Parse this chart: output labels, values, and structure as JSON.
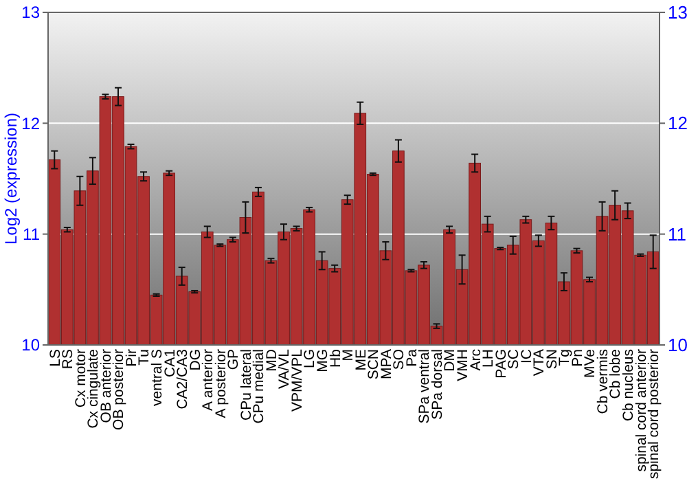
{
  "chart_data": {
    "type": "bar",
    "ylabel": "Log2 (expression)",
    "categories": [
      "LS",
      "RS",
      "Cx motor",
      "Cx cingulate",
      "OB anterior",
      "OB posterior",
      "Pir",
      "Tu",
      "ventral S",
      "CA1",
      "CA2/CA3",
      "DG",
      "A anterior",
      "A posterior",
      "GP",
      "CPu lateral",
      "CPu medial",
      "MD",
      "VA/VL",
      "VPM/VPL",
      "LG",
      "MG",
      "Hb",
      "M",
      "ME",
      "SCN",
      "MPA",
      "SO",
      "Pa",
      "SPa ventral",
      "SPa dorsal",
      "DM",
      "VMH",
      "Arc",
      "LH",
      "PAG",
      "SC",
      "IC",
      "VTA",
      "SN",
      "Tg",
      "Pn",
      "MVe",
      "Cb vermis",
      "Cb lobe",
      "Cb nucleus",
      "spinal cord anterior",
      "spinal cord posterior"
    ],
    "values": [
      11.67,
      11.04,
      11.39,
      11.57,
      12.24,
      12.24,
      11.79,
      11.52,
      10.45,
      11.55,
      10.62,
      10.48,
      11.02,
      10.9,
      10.95,
      11.15,
      11.38,
      10.76,
      11.02,
      11.05,
      11.22,
      10.76,
      10.69,
      11.31,
      12.09,
      11.54,
      10.85,
      11.75,
      10.67,
      10.72,
      10.17,
      11.04,
      10.68,
      11.64,
      11.09,
      10.87,
      10.9,
      11.13,
      10.94,
      11.1,
      10.57,
      10.85,
      10.59,
      11.16,
      11.26,
      11.21,
      10.81,
      10.84
    ],
    "errors": [
      0.08,
      0.02,
      0.13,
      0.12,
      0.02,
      0.08,
      0.02,
      0.04,
      0.01,
      0.02,
      0.08,
      0.01,
      0.05,
      0.01,
      0.02,
      0.14,
      0.04,
      0.02,
      0.07,
      0.02,
      0.02,
      0.08,
      0.03,
      0.04,
      0.1,
      0.01,
      0.08,
      0.1,
      0.01,
      0.03,
      0.02,
      0.03,
      0.13,
      0.08,
      0.07,
      0.01,
      0.08,
      0.03,
      0.05,
      0.06,
      0.08,
      0.02,
      0.02,
      0.13,
      0.13,
      0.07,
      0.01,
      0.15
    ],
    "color": "#b03030",
    "ylim": [
      10,
      13
    ],
    "yticks": [
      10,
      11,
      12,
      13
    ],
    "y2lim": [
      10,
      13
    ],
    "y2ticks": [
      10,
      11,
      12,
      13
    ],
    "grid": "y"
  }
}
